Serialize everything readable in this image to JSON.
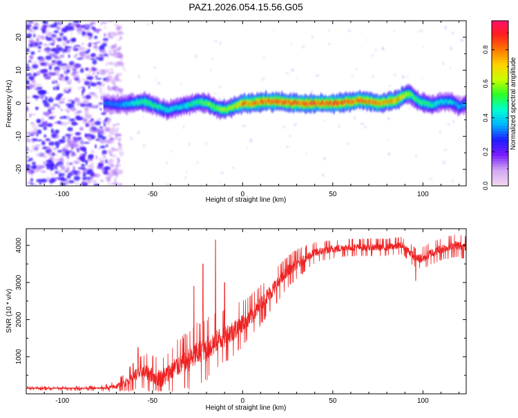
{
  "title": "PAZ1.2026.054.15.56.G05",
  "chart_data": [
    {
      "type": "heatmap",
      "panel": "spectrogram",
      "xlabel": "Height of straight line (km)",
      "ylabel": "Frequency (Hz)",
      "xlim": [
        -120,
        124
      ],
      "ylim": [
        -25,
        25
      ],
      "xticks": [
        -100,
        -50,
        0,
        50,
        100
      ],
      "yticks": [
        -20,
        -10,
        0,
        10,
        20
      ],
      "xtick_labels": [
        "-100",
        "-50",
        "0",
        "50",
        "100"
      ],
      "ytick_labels": [
        "-20",
        "-10",
        "0",
        "10",
        "20"
      ],
      "colorbar": {
        "label": "Normalized spectral amplitude",
        "range": [
          0.0,
          0.97
        ],
        "ticks": [
          "0.0",
          "0.2",
          "0.4",
          "0.6",
          "0.8"
        ],
        "tick_values": [
          0.0,
          0.2,
          0.4,
          0.6,
          0.8
        ],
        "colors": [
          "#f0d6f0",
          "#cfa5f2",
          "#7a1bff",
          "#1d1dff",
          "#00b4ff",
          "#00ffd2",
          "#28ff28",
          "#c8ff00",
          "#ffd200",
          "#ff7800",
          "#ff1e1e",
          "#ff0f6e"
        ]
      },
      "noise_region_x": [
        -120,
        -75
      ],
      "ridge": {
        "x": [
          -77,
          -70,
          -62,
          -55,
          -48,
          -42,
          -35,
          -30,
          -25,
          -20,
          -15,
          -10,
          -5,
          0,
          5,
          10,
          20,
          30,
          40,
          50,
          60,
          65,
          70,
          75,
          80,
          85,
          88,
          92,
          96,
          100,
          105,
          110,
          115,
          120,
          124
        ],
        "freq": [
          0,
          -0.5,
          0,
          0.5,
          -1,
          -2,
          -1,
          -0.5,
          0.5,
          0,
          -1.5,
          -2,
          -1,
          0,
          0,
          0.5,
          0.5,
          0,
          0,
          0,
          0.5,
          1,
          0.5,
          0,
          0.5,
          1,
          2,
          3,
          1,
          0,
          -0.5,
          0.5,
          0.5,
          -1,
          0
        ],
        "amplitude": [
          0.35,
          0.35,
          0.45,
          0.55,
          0.5,
          0.45,
          0.45,
          0.5,
          0.55,
          0.6,
          0.6,
          0.65,
          0.7,
          0.85,
          0.85,
          0.88,
          0.9,
          0.9,
          0.9,
          0.9,
          0.88,
          0.85,
          0.85,
          0.85,
          0.82,
          0.8,
          0.75,
          0.6,
          0.55,
          0.55,
          0.5,
          0.45,
          0.45,
          0.4,
          0.4
        ]
      }
    },
    {
      "type": "line",
      "panel": "snr",
      "xlabel": "Height of straight line (km)",
      "ylabel": "SNR (10 * v/v)",
      "xlim": [
        -120,
        124
      ],
      "ylim": [
        0,
        4450
      ],
      "xticks": [
        -100,
        -50,
        0,
        50,
        100
      ],
      "yticks": [
        1000,
        2000,
        3000,
        4000
      ],
      "xtick_labels": [
        "-100",
        "-50",
        "0",
        "50",
        "100"
      ],
      "ytick_labels": [
        "1000",
        "2000",
        "3000",
        "4000"
      ],
      "color": "#ee2222",
      "trend": {
        "x": [
          -120,
          -90,
          -80,
          -75,
          -70,
          -65,
          -60,
          -55,
          -50,
          -45,
          -40,
          -35,
          -30,
          -25,
          -20,
          -15,
          -10,
          -5,
          0,
          5,
          10,
          15,
          20,
          25,
          30,
          35,
          40,
          50,
          60,
          70,
          80,
          88,
          92,
          96,
          100,
          105,
          110,
          118,
          124
        ],
        "y": [
          150,
          150,
          150,
          160,
          200,
          300,
          500,
          600,
          500,
          400,
          600,
          800,
          900,
          1100,
          1200,
          1400,
          1550,
          1700,
          1900,
          2100,
          2400,
          2700,
          3000,
          3300,
          3500,
          3650,
          3800,
          3900,
          3950,
          3950,
          3950,
          4000,
          3850,
          3650,
          3650,
          3800,
          3900,
          4000,
          3950
        ]
      },
      "noise": {
        "x": [
          -120,
          -80,
          -70,
          -60,
          -50,
          -40,
          -30,
          -20,
          -10,
          0,
          10,
          20,
          30,
          40,
          60,
          90,
          100,
          124
        ],
        "amp": [
          30,
          40,
          100,
          250,
          350,
          400,
          500,
          550,
          450,
          400,
          350,
          300,
          250,
          180,
          150,
          150,
          200,
          200
        ]
      },
      "spikes": [
        {
          "x": -58,
          "y": 1250
        },
        {
          "x": -27,
          "y": 2900
        },
        {
          "x": -22,
          "y": 3500
        },
        {
          "x": -15,
          "y": 4150
        },
        {
          "x": -10,
          "y": 3000
        },
        {
          "x": 96,
          "y": 3050
        }
      ]
    }
  ]
}
